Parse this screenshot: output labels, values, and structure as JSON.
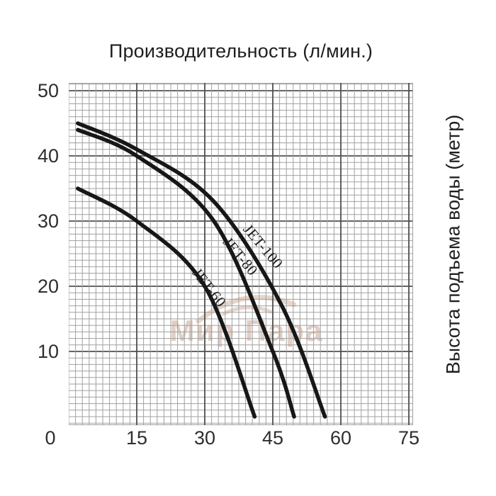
{
  "chart_data": {
    "type": "line",
    "title": "Производительность (л/мин.)",
    "ylabel_right": "Высота подъема воды (метр)",
    "xlabel": "",
    "xlim": [
      0,
      75.9
    ],
    "ylim": [
      0,
      51.2
    ],
    "x_ticks": [
      0,
      15,
      30,
      45,
      60,
      75
    ],
    "y_ticks": [
      10,
      20,
      30,
      40,
      50
    ],
    "grid": "minor and major graph-paper grid, majors every 15 (x) and 10 (y) units",
    "legend_position": "labels along curves",
    "watermark": "Мир Пара",
    "series": [
      {
        "name": "JET-60",
        "points": [
          [
            2,
            35
          ],
          [
            15,
            30
          ],
          [
            30,
            20
          ],
          [
            41,
            0
          ]
        ]
      },
      {
        "name": "JET-80",
        "points": [
          [
            2,
            44
          ],
          [
            15,
            40
          ],
          [
            32,
            30
          ],
          [
            45,
            10
          ],
          [
            49.7,
            0
          ]
        ]
      },
      {
        "name": "JET-100",
        "points": [
          [
            2,
            45
          ],
          [
            15,
            41
          ],
          [
            32,
            33
          ],
          [
            47,
            17
          ],
          [
            56.5,
            0
          ]
        ]
      }
    ],
    "colors": {
      "curve": "#171717",
      "grid_minor": "#a1a1a1",
      "grid_major": "#4f4f4f",
      "tick_text": "#2e2e2e",
      "title_text": "#1f1f1f",
      "watermark": "#b98d74"
    }
  }
}
